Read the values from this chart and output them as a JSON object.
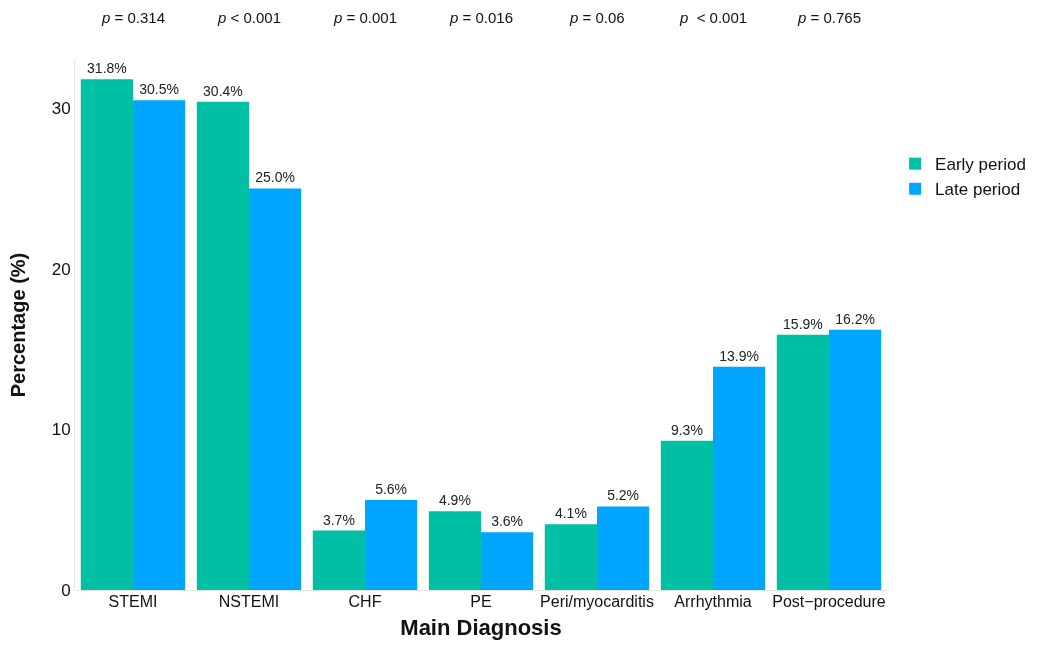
{
  "chart_data": {
    "type": "bar",
    "xlabel": "Main Diagnosis",
    "ylabel": "Percentage (%)",
    "categories": [
      "STEMI",
      "NSTEMI",
      "CHF",
      "PE",
      "Peri/myocarditis",
      "Arrhythmia",
      "Post−procedure"
    ],
    "series": [
      {
        "name": "Early period",
        "color": "#00bfa5",
        "values": [
          31.8,
          30.4,
          3.7,
          4.9,
          4.1,
          9.3,
          15.9
        ],
        "value_labels": [
          "31.8%",
          "30.4%",
          "3.7%",
          "4.9%",
          "4.1%",
          "9.3%",
          "15.9%"
        ]
      },
      {
        "name": "Late period",
        "color": "#00a5ff",
        "values": [
          30.5,
          25.0,
          5.6,
          3.6,
          5.2,
          13.9,
          16.2
        ],
        "value_labels": [
          "30.5%",
          "25.0%",
          "5.6%",
          "3.6%",
          "5.2%",
          "13.9%",
          "16.2%"
        ]
      }
    ],
    "annotations": [
      "p = 0.314",
      "p < 0.001",
      "p = 0.001",
      "p = 0.016",
      "p = 0.06",
      "p  < 0.001",
      "p = 0.765"
    ],
    "ylim": [
      0,
      33
    ],
    "yticks": [
      0,
      10,
      20,
      30
    ],
    "grid": false,
    "legend": "right"
  }
}
